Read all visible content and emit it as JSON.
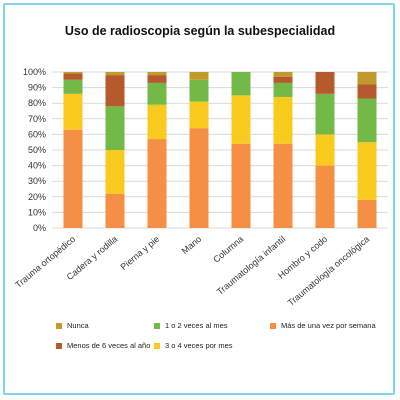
{
  "chart_data": {
    "type": "bar",
    "stacked": true,
    "title": "Uso de radioscopia según la subespecialidad",
    "categories": [
      "Trauma ortopédico",
      "Cadera y rodilla",
      "Pierna y pie",
      "Mano",
      "Columna",
      "Traumatología infantil",
      "Hombro y codo",
      "Traumatología oncológica"
    ],
    "ylim": [
      0,
      100
    ],
    "yticks": [
      "0%",
      "10%",
      "20%",
      "30%",
      "40%",
      "50%",
      "60%",
      "70%",
      "80%",
      "90%",
      "100%"
    ],
    "grid": true,
    "legend_position": "bottom",
    "series": [
      {
        "name": "Más de una vez por semana",
        "color": "#f58f45",
        "values": [
          63,
          22,
          57,
          64,
          54,
          54,
          40,
          18
        ]
      },
      {
        "name": "3 o 4 veces por mes",
        "color": "#f9cb1e",
        "values": [
          23,
          28,
          22,
          17,
          31,
          30,
          20,
          37
        ]
      },
      {
        "name": "1 o 2 veces al mes",
        "color": "#72b948",
        "values": [
          9,
          28,
          14,
          14,
          15,
          9,
          26,
          28
        ]
      },
      {
        "name": "Menos de 6 veces al año",
        "color": "#b65a2e",
        "values": [
          4,
          20,
          5,
          0,
          0,
          4,
          14,
          9
        ]
      },
      {
        "name": "Nunca",
        "color": "#c19a2b",
        "values": [
          1,
          2,
          2,
          5,
          0,
          3,
          0,
          8
        ]
      }
    ]
  }
}
